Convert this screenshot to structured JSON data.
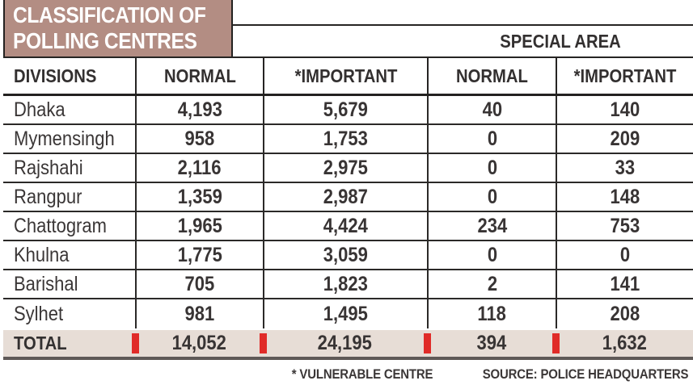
{
  "title": {
    "line1": "CLASSIFICATION OF",
    "line2": "POLLING CENTRES"
  },
  "table": {
    "special_area_header": "SPECIAL AREA",
    "headers": {
      "division": "DIVISIONS",
      "normal": "NORMAL",
      "important": "*IMPORTANT",
      "sa_normal": "NORMAL",
      "sa_important": "*IMPORTANT"
    },
    "rows": [
      {
        "division": "Dhaka",
        "normal": "4,193",
        "important": "5,679",
        "sa_normal": "40",
        "sa_important": "140"
      },
      {
        "division": "Mymensingh",
        "normal": "958",
        "important": "1,753",
        "sa_normal": "0",
        "sa_important": "209"
      },
      {
        "division": "Rajshahi",
        "normal": "2,116",
        "important": "2,975",
        "sa_normal": "0",
        "sa_important": "33"
      },
      {
        "division": "Rangpur",
        "normal": "1,359",
        "important": "2,987",
        "sa_normal": "0",
        "sa_important": "148"
      },
      {
        "division": "Chattogram",
        "normal": "1,965",
        "important": "4,424",
        "sa_normal": "234",
        "sa_important": "753"
      },
      {
        "division": "Khulna",
        "normal": "1,775",
        "important": "3,059",
        "sa_normal": "0",
        "sa_important": "0"
      },
      {
        "division": "Barishal",
        "normal": "705",
        "important": "1,823",
        "sa_normal": "2",
        "sa_important": "141"
      },
      {
        "division": "Sylhet",
        "normal": "981",
        "important": "1,495",
        "sa_normal": "118",
        "sa_important": "208"
      }
    ],
    "total": {
      "label": "TOTAL",
      "normal": "14,052",
      "important": "24,195",
      "sa_normal": "394",
      "sa_important": "1,632"
    }
  },
  "footer": {
    "note": "* VULNERABLE CENTRE",
    "source": "SOURCE: POLICE HEADQUARTERS"
  },
  "colors": {
    "title_bg": "#b38d83",
    "title_text": "#ffffff",
    "total_row_bg": "#e7ddd6",
    "tick_red": "#e02b28",
    "line_dark": "#262423",
    "text_dark": "#3a3636"
  },
  "chart_data": {
    "type": "table",
    "title": "CLASSIFICATION OF POLLING CENTRES",
    "columns": [
      "DIVISIONS",
      "NORMAL",
      "*IMPORTANT",
      "SPECIAL AREA NORMAL",
      "SPECIAL AREA *IMPORTANT"
    ],
    "rows": [
      [
        "Dhaka",
        4193,
        5679,
        40,
        140
      ],
      [
        "Mymensingh",
        958,
        1753,
        0,
        209
      ],
      [
        "Rajshahi",
        2116,
        2975,
        0,
        33
      ],
      [
        "Rangpur",
        1359,
        2987,
        0,
        148
      ],
      [
        "Chattogram",
        1965,
        4424,
        234,
        753
      ],
      [
        "Khulna",
        1775,
        3059,
        0,
        0
      ],
      [
        "Barishal",
        705,
        1823,
        2,
        141
      ],
      [
        "Sylhet",
        981,
        1495,
        118,
        208
      ],
      [
        "TOTAL",
        14052,
        24195,
        394,
        1632
      ]
    ],
    "footnote": "* VULNERABLE CENTRE",
    "source": "SOURCE: POLICE HEADQUARTERS"
  }
}
